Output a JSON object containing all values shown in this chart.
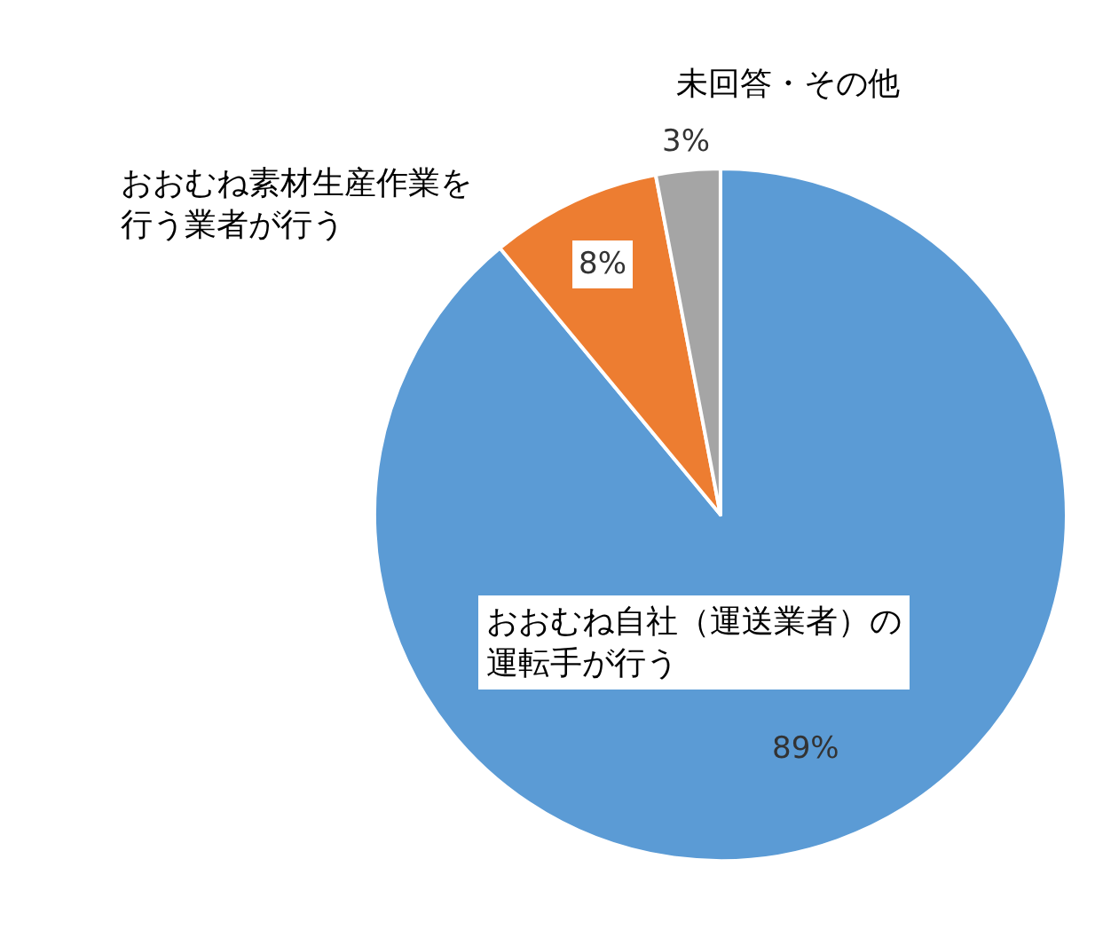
{
  "chart_data": {
    "type": "pie",
    "categories": [
      "おおむね自社（運送業者）の運転手が行う",
      "おおむね素材生産作業を行う業者が行う",
      "未回答・その他"
    ],
    "values": [
      89,
      8,
      3
    ],
    "value_labels": [
      "89%",
      "8%",
      "3%"
    ],
    "colors": [
      "#5b9bd5",
      "#ed7d31",
      "#a5a5a5"
    ],
    "legend": false
  }
}
